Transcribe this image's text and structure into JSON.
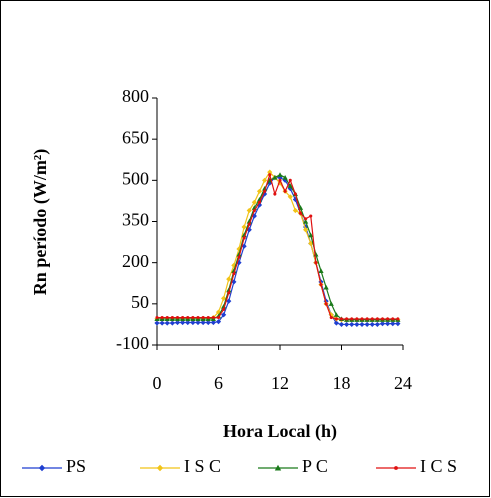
{
  "chart_data": {
    "type": "line",
    "x_label": "Hora Local (h)",
    "y_label": "Rn período (W/m²)",
    "x": [
      0,
      0.5,
      1,
      1.5,
      2,
      2.5,
      3,
      3.5,
      4,
      4.5,
      5,
      5.5,
      6,
      6.5,
      7,
      7.5,
      8,
      8.5,
      9,
      9.5,
      10,
      10.5,
      11,
      11.5,
      12,
      12.5,
      13,
      13.5,
      14,
      14.5,
      15,
      15.5,
      16,
      16.5,
      17,
      17.5,
      18,
      18.5,
      19,
      19.5,
      20,
      20.5,
      21,
      21.5,
      22,
      22.5,
      23,
      23.5
    ],
    "xlim": [
      0,
      24
    ],
    "xticks": [
      0,
      6,
      12,
      18,
      24
    ],
    "ylim": [
      -100,
      800
    ],
    "yticks": [
      -100,
      50,
      200,
      350,
      500,
      650,
      800
    ],
    "series": [
      {
        "name": "PS",
        "color": "#1f3fd0",
        "marker": "diamond",
        "values": [
          -20,
          -20,
          -20,
          -20,
          -18,
          -18,
          -18,
          -18,
          -18,
          -18,
          -18,
          -18,
          -15,
          10,
          60,
          130,
          200,
          260,
          320,
          370,
          410,
          450,
          490,
          510,
          510,
          500,
          470,
          430,
          380,
          330,
          270,
          200,
          130,
          60,
          10,
          -20,
          -25,
          -25,
          -25,
          -25,
          -25,
          -25,
          -25,
          -25,
          -22,
          -22,
          -22,
          -22
        ]
      },
      {
        "name": "I S C",
        "color": "#f2c418",
        "marker": "diamond",
        "values": [
          -5,
          -5,
          -5,
          -5,
          -5,
          -5,
          -5,
          -5,
          -5,
          -5,
          -5,
          0,
          20,
          70,
          140,
          190,
          250,
          330,
          390,
          420,
          460,
          500,
          530,
          510,
          490,
          460,
          440,
          390,
          380,
          320,
          270,
          200,
          120,
          50,
          10,
          -5,
          -8,
          -8,
          -8,
          -8,
          -8,
          -8,
          -8,
          -8,
          -8,
          -8,
          -8,
          -8
        ]
      },
      {
        "name": "P C",
        "color": "#1a7a1a",
        "marker": "triangle",
        "values": [
          -5,
          -5,
          -5,
          -5,
          -5,
          -5,
          -5,
          -5,
          -5,
          -5,
          -5,
          -5,
          5,
          40,
          100,
          170,
          230,
          300,
          350,
          400,
          430,
          470,
          500,
          510,
          520,
          510,
          480,
          450,
          400,
          350,
          300,
          230,
          170,
          110,
          50,
          10,
          -5,
          -8,
          -8,
          -8,
          -8,
          -8,
          -8,
          -8,
          -8,
          -8,
          -8,
          -8
        ]
      },
      {
        "name": "I C S",
        "color": "#e01010",
        "marker": "circle",
        "values": [
          0,
          0,
          0,
          0,
          0,
          0,
          0,
          0,
          0,
          0,
          0,
          0,
          0,
          30,
          90,
          160,
          220,
          290,
          340,
          390,
          420,
          460,
          520,
          450,
          500,
          460,
          500,
          450,
          380,
          360,
          370,
          200,
          120,
          50,
          0,
          -5,
          -5,
          -5,
          -5,
          -5,
          -5,
          -5,
          -5,
          -5,
          -5,
          -5,
          -5,
          -5
        ]
      }
    ]
  }
}
